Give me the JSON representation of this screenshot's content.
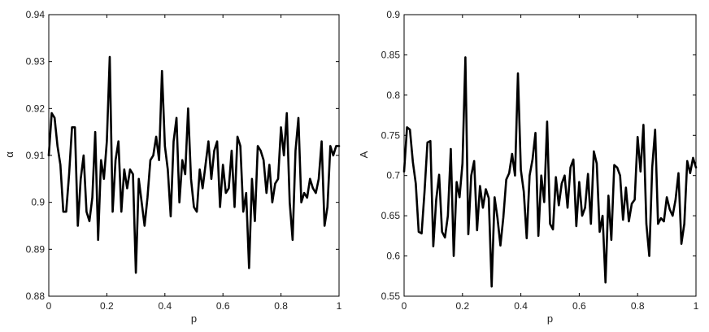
{
  "chart_data": [
    {
      "type": "line",
      "xlabel": "p",
      "ylabel": "α",
      "xlim": [
        0,
        1
      ],
      "ylim": [
        0.88,
        0.94
      ],
      "xticks": [
        0,
        0.2,
        0.4,
        0.6,
        0.8,
        1
      ],
      "xtick_labels": [
        "0",
        "0.2",
        "0.4",
        "0.6",
        "0.8",
        "1"
      ],
      "yticks": [
        0.88,
        0.89,
        0.9,
        0.91,
        0.92,
        0.93,
        0.94
      ],
      "ytick_labels": [
        "0.88",
        "0.89",
        "0.9",
        "0.91",
        "0.92",
        "0.93",
        "0.94"
      ],
      "grid": false,
      "line_color": "#000000",
      "series": [
        {
          "x": [
            0.0,
            0.01,
            0.02,
            0.03,
            0.04,
            0.05,
            0.06,
            0.07,
            0.08,
            0.09,
            0.1,
            0.11,
            0.12,
            0.13,
            0.14,
            0.15,
            0.16,
            0.17,
            0.18,
            0.19,
            0.2,
            0.21,
            0.22,
            0.23,
            0.24,
            0.25,
            0.26,
            0.27,
            0.28,
            0.29,
            0.3,
            0.31,
            0.32,
            0.33,
            0.34,
            0.35,
            0.36,
            0.37,
            0.38,
            0.39,
            0.4,
            0.41,
            0.42,
            0.43,
            0.44,
            0.45,
            0.46,
            0.47,
            0.48,
            0.49,
            0.5,
            0.51,
            0.52,
            0.53,
            0.54,
            0.55,
            0.56,
            0.57,
            0.58,
            0.59,
            0.6,
            0.61,
            0.62,
            0.63,
            0.64,
            0.65,
            0.66,
            0.67,
            0.68,
            0.69,
            0.7,
            0.71,
            0.72,
            0.73,
            0.74,
            0.75,
            0.76,
            0.77,
            0.78,
            0.79,
            0.8,
            0.81,
            0.82,
            0.83,
            0.84,
            0.85,
            0.86,
            0.87,
            0.88,
            0.89,
            0.9,
            0.91,
            0.92,
            0.93,
            0.94,
            0.95,
            0.96,
            0.97,
            0.98,
            0.99,
            1.0
          ],
          "y": [
            0.91,
            0.919,
            0.918,
            0.912,
            0.908,
            0.898,
            0.898,
            0.906,
            0.916,
            0.916,
            0.895,
            0.905,
            0.91,
            0.898,
            0.896,
            0.901,
            0.915,
            0.892,
            0.909,
            0.905,
            0.913,
            0.931,
            0.898,
            0.909,
            0.913,
            0.898,
            0.907,
            0.903,
            0.907,
            0.906,
            0.885,
            0.905,
            0.9,
            0.895,
            0.901,
            0.909,
            0.91,
            0.914,
            0.909,
            0.928,
            0.912,
            0.907,
            0.897,
            0.913,
            0.918,
            0.9,
            0.909,
            0.906,
            0.92,
            0.905,
            0.899,
            0.898,
            0.907,
            0.903,
            0.908,
            0.913,
            0.905,
            0.911,
            0.913,
            0.899,
            0.908,
            0.902,
            0.903,
            0.911,
            0.899,
            0.914,
            0.912,
            0.898,
            0.902,
            0.886,
            0.905,
            0.896,
            0.912,
            0.911,
            0.909,
            0.902,
            0.908,
            0.9,
            0.904,
            0.905,
            0.916,
            0.91,
            0.919,
            0.9,
            0.892,
            0.911,
            0.918,
            0.9,
            0.902,
            0.901,
            0.905,
            0.903,
            0.902,
            0.905,
            0.913,
            0.895,
            0.899,
            0.912,
            0.91,
            0.912,
            0.912
          ]
        }
      ]
    },
    {
      "type": "line",
      "xlabel": "p",
      "ylabel": "A",
      "xlim": [
        0,
        1
      ],
      "ylim": [
        0.55,
        0.9
      ],
      "xticks": [
        0,
        0.2,
        0.4,
        0.6,
        0.8,
        1
      ],
      "xtick_labels": [
        "0",
        "0.2",
        "0.4",
        "0.6",
        "0.8",
        "1"
      ],
      "yticks": [
        0.55,
        0.6,
        0.65,
        0.7,
        0.75,
        0.8,
        0.85,
        0.9
      ],
      "ytick_labels": [
        "0.55",
        "0.6",
        "0.65",
        "0.7",
        "0.75",
        "0.8",
        "0.85",
        "0.9"
      ],
      "grid": false,
      "line_color": "#000000",
      "series": [
        {
          "x": [
            0.0,
            0.01,
            0.02,
            0.03,
            0.04,
            0.05,
            0.06,
            0.07,
            0.08,
            0.09,
            0.1,
            0.11,
            0.12,
            0.13,
            0.14,
            0.15,
            0.16,
            0.17,
            0.18,
            0.19,
            0.2,
            0.21,
            0.22,
            0.23,
            0.24,
            0.25,
            0.26,
            0.27,
            0.28,
            0.29,
            0.3,
            0.31,
            0.32,
            0.33,
            0.34,
            0.35,
            0.36,
            0.37,
            0.38,
            0.39,
            0.4,
            0.41,
            0.42,
            0.43,
            0.44,
            0.45,
            0.46,
            0.47,
            0.48,
            0.49,
            0.5,
            0.51,
            0.52,
            0.53,
            0.54,
            0.55,
            0.56,
            0.57,
            0.58,
            0.59,
            0.6,
            0.61,
            0.62,
            0.63,
            0.64,
            0.65,
            0.66,
            0.67,
            0.68,
            0.69,
            0.7,
            0.71,
            0.72,
            0.73,
            0.74,
            0.75,
            0.76,
            0.77,
            0.78,
            0.79,
            0.8,
            0.81,
            0.82,
            0.83,
            0.84,
            0.85,
            0.86,
            0.87,
            0.88,
            0.89,
            0.9,
            0.91,
            0.92,
            0.93,
            0.94,
            0.95,
            0.96,
            0.97,
            0.98,
            0.99,
            1.0
          ],
          "y": [
            0.705,
            0.76,
            0.757,
            0.717,
            0.69,
            0.63,
            0.628,
            0.68,
            0.741,
            0.743,
            0.612,
            0.67,
            0.701,
            0.63,
            0.623,
            0.65,
            0.733,
            0.6,
            0.692,
            0.673,
            0.715,
            0.847,
            0.627,
            0.7,
            0.718,
            0.632,
            0.687,
            0.66,
            0.683,
            0.672,
            0.562,
            0.673,
            0.647,
            0.613,
            0.648,
            0.695,
            0.703,
            0.727,
            0.7,
            0.827,
            0.707,
            0.68,
            0.622,
            0.7,
            0.72,
            0.753,
            0.625,
            0.7,
            0.667,
            0.767,
            0.64,
            0.633,
            0.698,
            0.663,
            0.69,
            0.7,
            0.66,
            0.71,
            0.72,
            0.637,
            0.692,
            0.65,
            0.66,
            0.702,
            0.64,
            0.73,
            0.715,
            0.63,
            0.65,
            0.567,
            0.675,
            0.62,
            0.713,
            0.71,
            0.7,
            0.645,
            0.685,
            0.643,
            0.665,
            0.67,
            0.748,
            0.705,
            0.763,
            0.64,
            0.6,
            0.71,
            0.757,
            0.64,
            0.647,
            0.643,
            0.673,
            0.658,
            0.65,
            0.67,
            0.703,
            0.615,
            0.64,
            0.718,
            0.703,
            0.722,
            0.71
          ]
        }
      ]
    }
  ]
}
